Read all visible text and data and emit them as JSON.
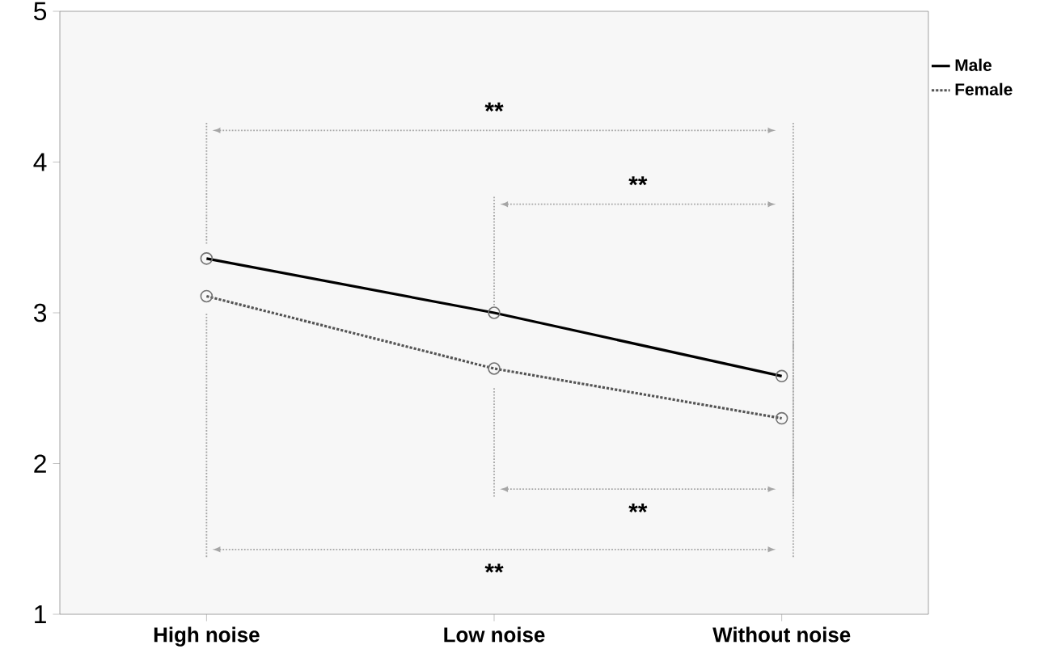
{
  "chart_data": {
    "type": "line",
    "categories": [
      "High noise",
      "Low noise",
      "Without noise"
    ],
    "series": [
      {
        "name": "Male",
        "color": "#000000",
        "line_style": "solid",
        "values": [
          3.36,
          3.0,
          2.58
        ]
      },
      {
        "name": "Female",
        "color": "#555555",
        "line_style": "dotted",
        "values": [
          3.11,
          2.63,
          2.3
        ]
      }
    ],
    "ylim": [
      1,
      5
    ],
    "yticks": [
      1,
      2,
      3,
      4,
      5
    ],
    "marker": "circle",
    "legend": "top right",
    "grid": false,
    "annotations": [
      "**",
      "**",
      "**",
      "**"
    ]
  }
}
